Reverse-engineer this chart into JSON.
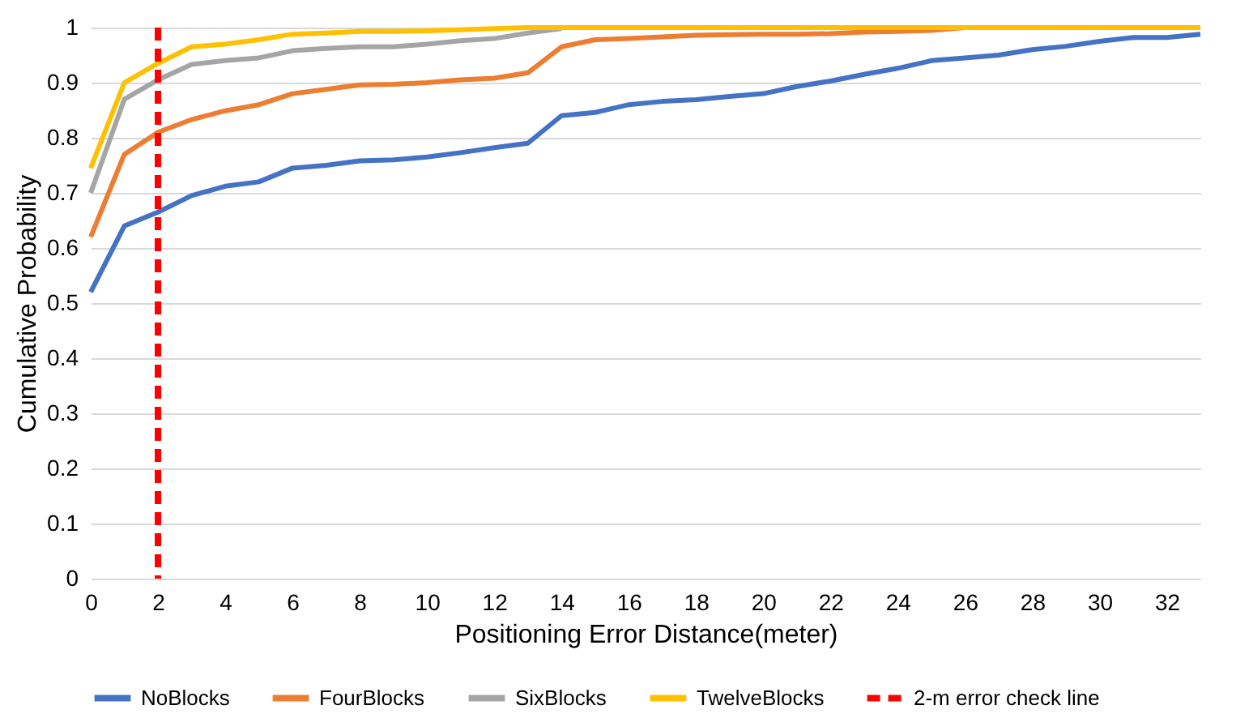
{
  "chart_data": {
    "type": "line",
    "xlabel": "Positioning Error Distance(meter)",
    "ylabel": "Cumulative Probability",
    "x": [
      0,
      1,
      2,
      3,
      4,
      5,
      6,
      7,
      8,
      9,
      10,
      11,
      12,
      13,
      14,
      15,
      16,
      17,
      18,
      19,
      20,
      21,
      22,
      23,
      24,
      25,
      26,
      27,
      28,
      29,
      30,
      31,
      32,
      33
    ],
    "series": [
      {
        "name": "NoBlocks",
        "color": "#4472c4",
        "values": [
          0.52,
          0.64,
          0.665,
          0.695,
          0.712,
          0.72,
          0.745,
          0.75,
          0.758,
          0.76,
          0.765,
          0.773,
          0.782,
          0.79,
          0.84,
          0.846,
          0.86,
          0.866,
          0.869,
          0.875,
          0.88,
          0.893,
          0.903,
          0.915,
          0.926,
          0.94,
          0.945,
          0.95,
          0.96,
          0.966,
          0.975,
          0.982,
          0.982,
          0.988
        ]
      },
      {
        "name": "FourBlocks",
        "color": "#ed7d31",
        "values": [
          0.62,
          0.77,
          0.81,
          0.833,
          0.849,
          0.86,
          0.88,
          0.888,
          0.896,
          0.897,
          0.9,
          0.905,
          0.908,
          0.918,
          0.965,
          0.978,
          0.98,
          0.983,
          0.986,
          0.987,
          0.988,
          0.988,
          0.989,
          0.992,
          0.993,
          0.995,
          1,
          1,
          null,
          null,
          null,
          null,
          null,
          null
        ]
      },
      {
        "name": "SixBlocks",
        "color": "#a5a5a5",
        "values": [
          0.7,
          0.87,
          0.905,
          0.933,
          0.94,
          0.945,
          0.958,
          0.962,
          0.965,
          0.965,
          0.97,
          0.976,
          0.98,
          0.99,
          0.998,
          null,
          null,
          null,
          null,
          null,
          null,
          null,
          null,
          null,
          null,
          null,
          null,
          null,
          null,
          null,
          null,
          null,
          null,
          null
        ]
      },
      {
        "name": "TwelveBlocks",
        "color": "#ffc000",
        "values": [
          0.745,
          0.9,
          0.935,
          0.965,
          0.97,
          0.978,
          0.988,
          0.99,
          0.993,
          0.993,
          0.994,
          0.996,
          0.998,
          1,
          1,
          1,
          1,
          1,
          1,
          1,
          1,
          1,
          1,
          1,
          1,
          1,
          1,
          1,
          1,
          1,
          1,
          1,
          1,
          1
        ]
      }
    ],
    "ref_lines": [
      {
        "axis": "x",
        "value": 2,
        "label": "2-m error check line",
        "color": "#ff0000",
        "line_style": "dashed"
      }
    ],
    "xlim": [
      0,
      33
    ],
    "xticks": [
      0,
      2,
      4,
      6,
      8,
      10,
      12,
      14,
      16,
      18,
      20,
      22,
      24,
      26,
      28,
      30,
      32
    ],
    "ylim": [
      0,
      1
    ],
    "yticks": [
      0,
      0.1,
      0.2,
      0.3,
      0.4,
      0.5,
      0.6,
      0.7,
      0.8,
      0.9,
      1
    ],
    "grid": "y",
    "legend": "bottom",
    "line_style": "solid",
    "marker": "none"
  }
}
